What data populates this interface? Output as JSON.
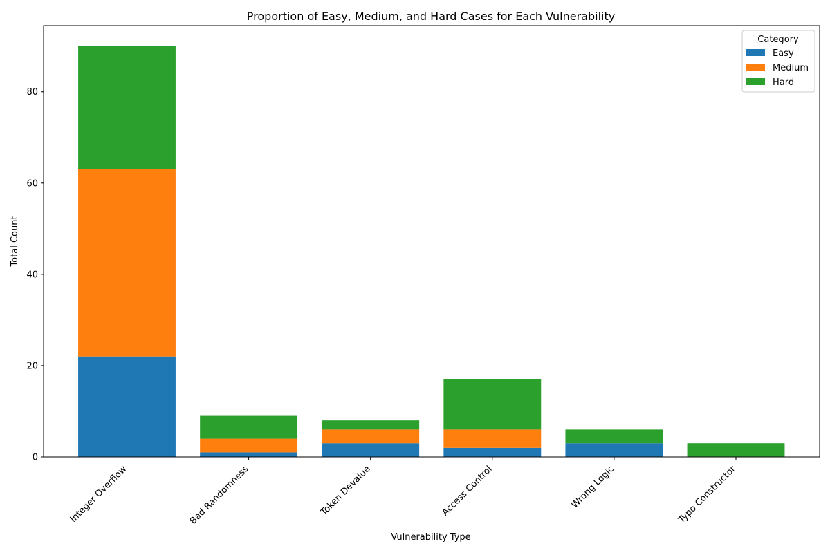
{
  "chart_data": {
    "type": "bar",
    "stacked": true,
    "title": "Proportion of Easy, Medium, and Hard Cases for Each Vulnerability",
    "xlabel": "Vulnerability Type",
    "ylabel": "Total Count",
    "categories": [
      "Integer Overflow",
      "Bad Randomness",
      "Token Devalue",
      "Access Control",
      "Wrong Logic",
      "Typo Constructor"
    ],
    "series": [
      {
        "name": "Easy",
        "color": "#1f77b4",
        "values": [
          22,
          1,
          3,
          2,
          3,
          0
        ]
      },
      {
        "name": "Medium",
        "color": "#ff7f0e",
        "values": [
          41,
          3,
          3,
          4,
          0,
          0
        ]
      },
      {
        "name": "Hard",
        "color": "#2ca02c",
        "values": [
          27,
          5,
          2,
          11,
          3,
          3
        ]
      }
    ],
    "ylim": [
      0,
      94.5
    ],
    "yticks": [
      0,
      20,
      40,
      60,
      80
    ],
    "grid": false,
    "legend": {
      "title": "Category",
      "placement": "top-right"
    }
  }
}
